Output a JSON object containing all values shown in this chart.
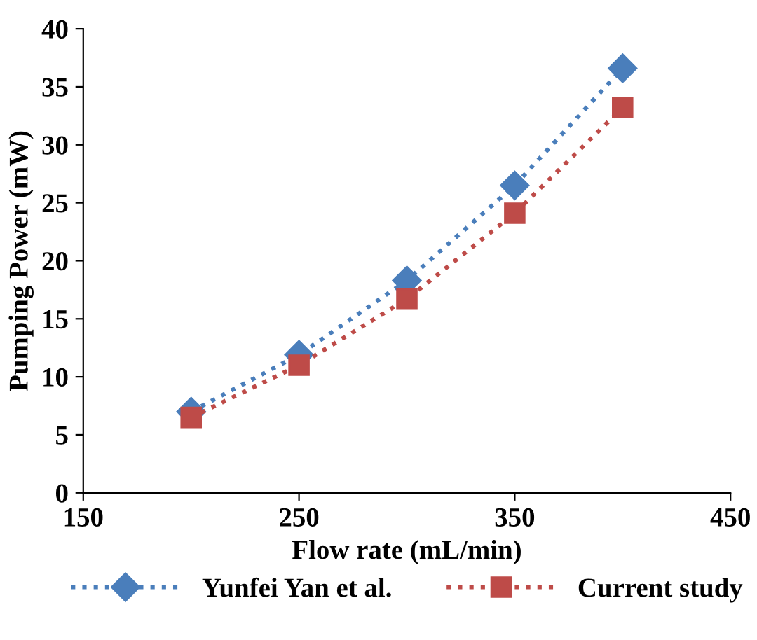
{
  "chart_data": {
    "type": "line",
    "xlabel": "Flow rate (mL/min)",
    "ylabel": "Pumping Power (mW)",
    "x": [
      200,
      250,
      300,
      350,
      400
    ],
    "series": [
      {
        "name": "Yunfei Yan et al.",
        "color": "#4a7ebb",
        "marker": "diamond",
        "values": [
          7.0,
          11.9,
          18.3,
          26.5,
          36.6
        ]
      },
      {
        "name": "Current study",
        "color": "#be4b48",
        "marker": "square",
        "values": [
          6.5,
          11.0,
          16.7,
          24.1,
          33.2
        ]
      }
    ],
    "xlim": [
      150,
      450
    ],
    "xticks": [
      150,
      250,
      350,
      450
    ],
    "ylim": [
      0,
      40
    ],
    "yticks": [
      0,
      5,
      10,
      15,
      20,
      25,
      30,
      35,
      40
    ],
    "line_style": "dotted",
    "grid": false,
    "legend": "bottom"
  }
}
